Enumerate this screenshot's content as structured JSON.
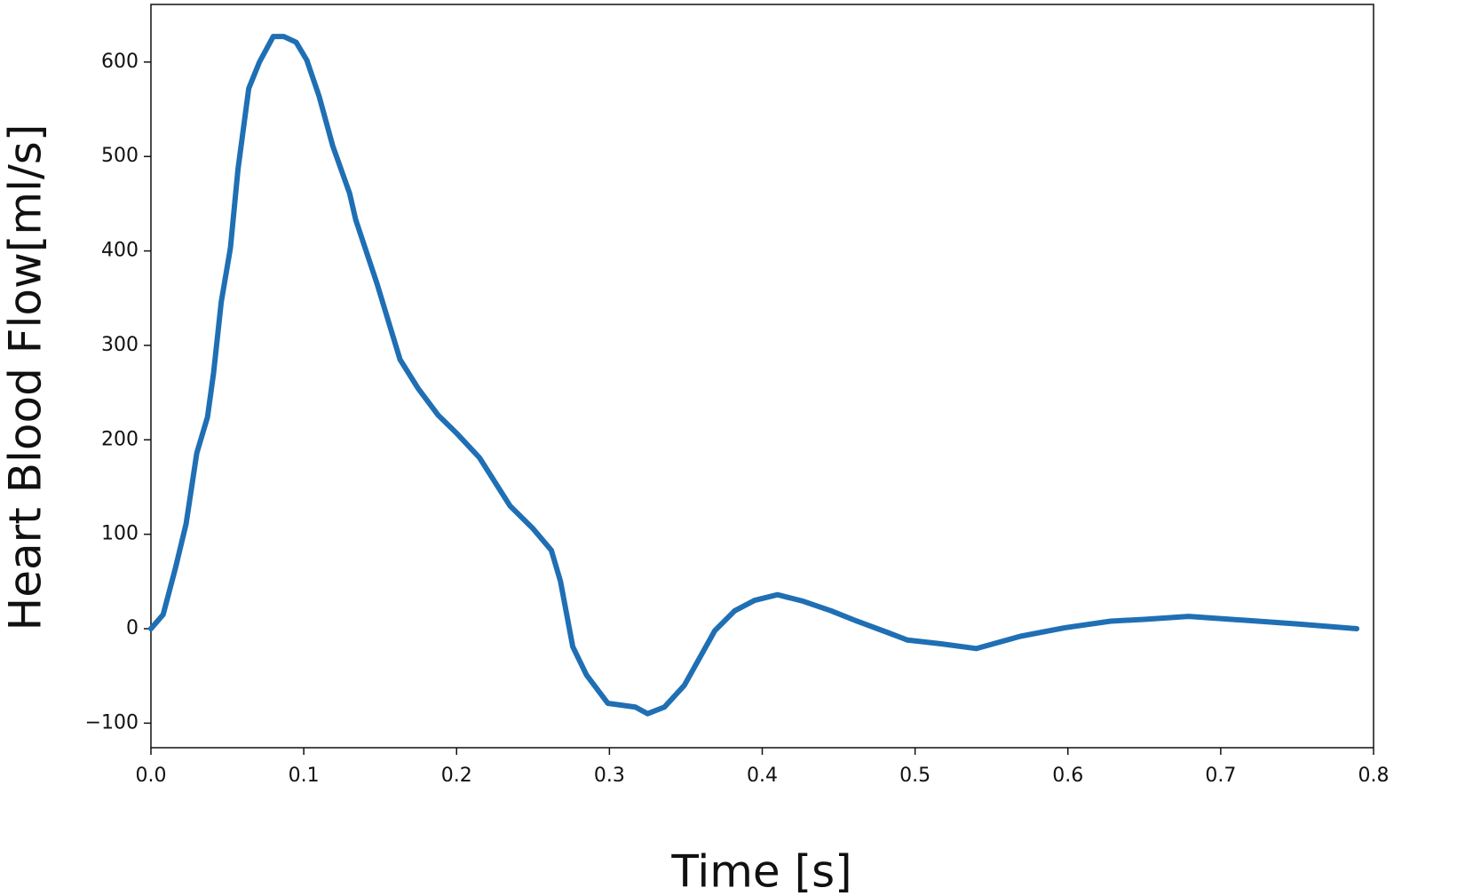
{
  "chart_data": {
    "type": "line",
    "xlabel": "Time [s]",
    "ylabel": "Heart Blood Flow[ml/s]",
    "x": [
      0,
      0.008,
      0.016,
      0.023,
      0.03,
      0.037,
      0.041,
      0.046,
      0.052,
      0.057,
      0.064,
      0.071,
      0.08,
      0.087,
      0.095,
      0.102,
      0.11,
      0.119,
      0.13,
      0.134,
      0.148,
      0.163,
      0.175,
      0.188,
      0.2,
      0.215,
      0.235,
      0.25,
      0.262,
      0.268,
      0.276,
      0.285,
      0.299,
      0.317,
      0.325,
      0.336,
      0.349,
      0.369,
      0.382,
      0.395,
      0.41,
      0.427,
      0.445,
      0.462,
      0.482,
      0.495,
      0.517,
      0.54,
      0.569,
      0.598,
      0.628,
      0.651,
      0.679,
      0.715,
      0.75,
      0.789
    ],
    "values": [
      0,
      15,
      64,
      111,
      186,
      224,
      271,
      346,
      403,
      487,
      572,
      600,
      627,
      627,
      621,
      602,
      564,
      511,
      461,
      433,
      365,
      285,
      254,
      226,
      207,
      181,
      130,
      106,
      83,
      50,
      -19,
      -49,
      -79,
      -83,
      -90,
      -83,
      -60,
      -2,
      19,
      30,
      36,
      29,
      19,
      8,
      -4,
      -12,
      -16,
      -21,
      -8,
      1,
      8,
      10,
      13,
      9,
      5,
      0
    ],
    "color": "#1f6fb4",
    "xlim": [
      0,
      0.8
    ],
    "xticks": [
      {
        "value": 0,
        "label": "0.0"
      },
      0.1,
      0.2,
      0.3,
      0.4,
      0.5,
      0.6,
      0.7,
      0.8
    ],
    "ylim": [
      -126,
      661
    ],
    "yticks": [
      {
        "value": -100,
        "label": "−100"
      },
      0,
      100,
      200,
      300,
      400,
      500,
      600
    ],
    "grid": false
  }
}
